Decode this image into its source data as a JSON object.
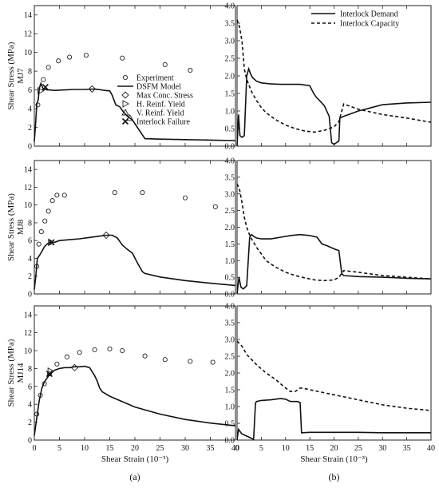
{
  "chart_data": [
    {
      "type": "scatter",
      "column": "a",
      "row_label": "MJ7",
      "ylabel": "Shear Stress (MPa)",
      "xlabel": "",
      "xlim": [
        0,
        40
      ],
      "ylim": [
        0,
        15
      ],
      "xticks": [
        0,
        5,
        10,
        15,
        20,
        25,
        30,
        35,
        40
      ],
      "yticks": [
        0,
        2,
        4,
        6,
        8,
        10,
        12,
        14
      ],
      "legend": {
        "placement": "right",
        "entries": [
          "Experiment",
          "DSFM Model",
          "Max Conc. Stress",
          "H. Reinf. Yield",
          "V. Reinf. Yield",
          "Interlock Failure"
        ]
      },
      "series": [
        {
          "name": "Experiment",
          "kind": "circle",
          "x": [
            0.7,
            1.8,
            2.8,
            4.8,
            7.0,
            10.3,
            17.5,
            26.0,
            31.0
          ],
          "y": [
            4.4,
            7.1,
            8.4,
            9.1,
            9.5,
            9.7,
            9.4,
            8.7,
            8.1
          ]
        },
        {
          "name": "DSFM Model",
          "kind": "line",
          "x": [
            0,
            0.2,
            0.5,
            0.8,
            1.0,
            1.3,
            1.6,
            1.9,
            2.2,
            2.5,
            3.0,
            4.0,
            6.0,
            8.0,
            10.0,
            12.0,
            14.0,
            15.0,
            15.5,
            16.2,
            17.0,
            17.5,
            18.5,
            19.5,
            20.5,
            21.5,
            22.0,
            25.0,
            30.0,
            35.0,
            40.0
          ],
          "y": [
            0.5,
            2.0,
            4.5,
            5.0,
            6.2,
            6.7,
            6.3,
            6.0,
            6.1,
            6.0,
            6.0,
            5.95,
            6.0,
            6.05,
            6.05,
            6.1,
            5.95,
            5.9,
            5.4,
            4.4,
            4.2,
            3.8,
            3.2,
            2.8,
            2.0,
            1.2,
            0.8,
            0.75,
            0.7,
            0.65,
            0.6
          ]
        },
        {
          "name": "Max Conc. Stress",
          "kind": "diamond",
          "x": [
            11.5
          ],
          "y": [
            6.1
          ]
        },
        {
          "name": "H. Reinf. Yield",
          "kind": "triangle-right",
          "x": [
            1.2
          ],
          "y": [
            5.9
          ]
        },
        {
          "name": "V. Reinf. Yield",
          "kind": "triangle-up",
          "x": [
            19.0
          ],
          "y": [
            3.0
          ]
        },
        {
          "name": "Interlock Failure",
          "kind": "cross",
          "x": [
            2.2
          ],
          "y": [
            6.3
          ]
        }
      ]
    },
    {
      "type": "line",
      "column": "b",
      "xlabel": "",
      "xlim": [
        0,
        40
      ],
      "ylim": [
        0,
        4
      ],
      "xticks": [
        0,
        5,
        10,
        15,
        20,
        25,
        30,
        35,
        40
      ],
      "yticks": [
        0.0,
        0.5,
        1.0,
        1.5,
        2.0,
        2.5,
        3.0,
        3.5,
        4.0
      ],
      "legend": {
        "placement": "top-right",
        "entries": [
          "Interlock Demand",
          "Interlock Capacity"
        ]
      },
      "series": [
        {
          "name": "Interlock Demand",
          "kind": "solid",
          "x": [
            0,
            0.3,
            0.6,
            1.0,
            1.5,
            2.0,
            2.4,
            2.8,
            3.2,
            4.0,
            5.0,
            7.0,
            9.0,
            11.0,
            13.0,
            15.0,
            15.8,
            16.3,
            17.0,
            18.0,
            19.0,
            19.5,
            20.0,
            20.5,
            21.0,
            21.2,
            22.0,
            25.0,
            30.0,
            35.0,
            40.0
          ],
          "y": [
            0.0,
            0.9,
            0.3,
            0.25,
            0.3,
            2.0,
            2.2,
            2.05,
            1.95,
            1.85,
            1.8,
            1.77,
            1.76,
            1.76,
            1.76,
            1.72,
            1.5,
            1.4,
            1.3,
            1.15,
            0.85,
            0.1,
            0.05,
            0.1,
            0.15,
            0.8,
            0.85,
            1.0,
            1.18,
            1.23,
            1.25
          ]
        },
        {
          "name": "Interlock Capacity",
          "kind": "dashed",
          "x": [
            0,
            0.5,
            1.0,
            1.5,
            2.0,
            3.0,
            4.0,
            5.0,
            6.0,
            8.0,
            10.0,
            12.0,
            14.0,
            16.0,
            18.0,
            19.0,
            20.0,
            21.0,
            22.0,
            25.0,
            30.0,
            35.0,
            40.0
          ],
          "y": [
            3.6,
            3.4,
            3.0,
            2.2,
            1.9,
            1.55,
            1.3,
            1.1,
            0.95,
            0.75,
            0.6,
            0.5,
            0.43,
            0.4,
            0.45,
            0.5,
            0.55,
            0.7,
            1.2,
            1.05,
            0.9,
            0.8,
            0.68
          ]
        }
      ]
    },
    {
      "type": "scatter",
      "column": "a",
      "row_label": "MJ8",
      "ylabel": "Shear Stress (MPa)",
      "xlabel": "",
      "xlim": [
        0,
        40
      ],
      "ylim": [
        0,
        15
      ],
      "xticks": [
        0,
        5,
        10,
        15,
        20,
        25,
        30,
        35,
        40
      ],
      "yticks": [
        0,
        2,
        4,
        6,
        8,
        10,
        12,
        14
      ],
      "series": [
        {
          "name": "Experiment",
          "kind": "circle",
          "x": [
            0.5,
            0.9,
            1.4,
            2.1,
            2.8,
            3.6,
            4.5,
            6.0,
            16.0,
            21.5,
            30.0,
            36.0
          ],
          "y": [
            3.1,
            5.6,
            7.0,
            8.2,
            9.3,
            10.5,
            11.1,
            11.1,
            11.4,
            11.4,
            10.8,
            9.8
          ]
        },
        {
          "name": "DSFM Model",
          "kind": "line",
          "x": [
            0,
            0.3,
            0.6,
            1.0,
            1.5,
            2.0,
            2.5,
            3.0,
            4.0,
            5.0,
            7.0,
            9.0,
            11.0,
            13.0,
            14.5,
            15.5,
            16.5,
            17.5,
            18.5,
            19.5,
            20.5,
            21.5,
            22.0,
            25.0,
            30.0,
            35.0,
            40.0
          ],
          "y": [
            0.5,
            2.0,
            4.0,
            4.3,
            4.8,
            5.3,
            5.6,
            5.8,
            5.8,
            6.0,
            6.1,
            6.2,
            6.35,
            6.5,
            6.6,
            6.6,
            6.3,
            5.5,
            5.0,
            4.6,
            3.5,
            2.5,
            2.3,
            1.9,
            1.5,
            1.2,
            0.95
          ]
        },
        {
          "name": "Max Conc. Stress",
          "kind": "diamond",
          "x": [
            14.3
          ],
          "y": [
            6.6
          ]
        },
        {
          "name": "H. Reinf. Yield",
          "kind": "triangle-right",
          "x": [
            3.3
          ],
          "y": [
            5.8
          ]
        },
        {
          "name": "Interlock Failure",
          "kind": "cross",
          "x": [
            3.4
          ],
          "y": [
            5.8
          ]
        }
      ]
    },
    {
      "type": "line",
      "column": "b",
      "xlabel": "",
      "xlim": [
        0,
        40
      ],
      "ylim": [
        0,
        4
      ],
      "xticks": [
        0,
        5,
        10,
        15,
        20,
        25,
        30,
        35,
        40
      ],
      "yticks": [
        0.0,
        0.5,
        1.0,
        1.5,
        2.0,
        2.5,
        3.0,
        3.5,
        4.0
      ],
      "series": [
        {
          "name": "Interlock Demand",
          "kind": "solid",
          "x": [
            0,
            0.4,
            0.8,
            1.3,
            2.0,
            2.6,
            3.0,
            3.5,
            4.0,
            5.0,
            7.0,
            9.0,
            11.0,
            13.0,
            15.0,
            16.5,
            17.5,
            18.5,
            20.0,
            21.0,
            21.6,
            22.0,
            25.0,
            30.0,
            35.0,
            40.0
          ],
          "y": [
            0.0,
            0.5,
            0.2,
            0.15,
            0.25,
            1.7,
            1.78,
            1.72,
            1.68,
            1.65,
            1.65,
            1.7,
            1.75,
            1.78,
            1.75,
            1.7,
            1.5,
            1.45,
            1.35,
            1.3,
            0.6,
            0.55,
            0.52,
            0.5,
            0.47,
            0.45
          ]
        },
        {
          "name": "Interlock Capacity",
          "kind": "dashed",
          "x": [
            0,
            0.5,
            1.0,
            1.5,
            2.0,
            2.5,
            3.0,
            4.0,
            5.0,
            6.0,
            8.0,
            10.0,
            12.0,
            14.0,
            16.0,
            18.0,
            20.0,
            21.0,
            22.0,
            25.0,
            30.0,
            35.0,
            40.0
          ],
          "y": [
            3.3,
            3.15,
            2.75,
            2.3,
            2.0,
            1.8,
            1.65,
            1.4,
            1.2,
            1.0,
            0.8,
            0.65,
            0.55,
            0.48,
            0.42,
            0.4,
            0.42,
            0.5,
            0.7,
            0.65,
            0.55,
            0.5,
            0.45
          ]
        }
      ]
    },
    {
      "type": "scatter",
      "column": "a",
      "row_label": "MJ14",
      "ylabel": "Shear Stress (MPa)",
      "xlabel": "Shear Strain (10⁻³)",
      "xlim": [
        0,
        40
      ],
      "ylim": [
        0,
        15
      ],
      "xticks": [
        0,
        5,
        10,
        15,
        20,
        25,
        30,
        35,
        40
      ],
      "yticks": [
        0,
        2,
        4,
        6,
        8,
        10,
        12,
        14
      ],
      "panel_label": "(a)",
      "series": [
        {
          "name": "Experiment",
          "kind": "circle",
          "x": [
            0.5,
            1.2,
            2.0,
            3.0,
            4.5,
            6.5,
            9.0,
            12.0,
            15.0,
            17.5,
            22.0,
            26.0,
            31.0,
            35.5
          ],
          "y": [
            2.9,
            5.0,
            6.3,
            7.4,
            8.5,
            9.3,
            9.8,
            10.1,
            10.2,
            10.0,
            9.4,
            9.0,
            8.8,
            8.7
          ]
        },
        {
          "name": "DSFM Model",
          "kind": "line",
          "x": [
            0,
            0.5,
            1.0,
            1.5,
            2.0,
            3.0,
            4.0,
            5.0,
            6.0,
            7.0,
            8.0,
            9.0,
            10.0,
            11.0,
            12.0,
            12.5,
            13.0,
            13.5,
            15.0,
            20.0,
            25.0,
            30.0,
            35.0,
            40.0
          ],
          "y": [
            0.5,
            2.5,
            4.5,
            5.8,
            6.5,
            7.3,
            7.8,
            8.0,
            8.1,
            8.1,
            8.2,
            8.2,
            8.25,
            8.1,
            7.2,
            6.6,
            5.8,
            5.4,
            4.9,
            3.7,
            2.9,
            2.3,
            1.9,
            1.6
          ]
        },
        {
          "name": "Max Conc. Stress",
          "kind": "diamond",
          "x": [
            8.0
          ],
          "y": [
            8.1
          ]
        },
        {
          "name": "H. Reinf. Yield",
          "kind": "triangle-right",
          "x": [
            3.2
          ],
          "y": [
            7.7
          ]
        },
        {
          "name": "Interlock Failure",
          "kind": "cross",
          "x": [
            3.0
          ],
          "y": [
            7.4
          ]
        }
      ]
    },
    {
      "type": "line",
      "column": "b",
      "xlabel": "Shear Strain (10⁻³)",
      "xlim": [
        0,
        40
      ],
      "ylim": [
        0,
        4
      ],
      "xticks": [
        0,
        5,
        10,
        15,
        20,
        25,
        30,
        35,
        40
      ],
      "yticks": [
        0.0,
        0.5,
        1.0,
        1.5,
        2.0,
        2.5,
        3.0,
        3.5,
        4.0
      ],
      "panel_label": "(b)",
      "series": [
        {
          "name": "Interlock Demand",
          "kind": "solid",
          "x": [
            0,
            0.3,
            1.0,
            2.0,
            3.0,
            3.4,
            3.8,
            4.0,
            5.0,
            7.0,
            9.0,
            10.0,
            11.0,
            12.5,
            13.0,
            13.3,
            13.5,
            15.0,
            20.0,
            25.0,
            30.0,
            35.0,
            40.0
          ],
          "y": [
            0.0,
            0.32,
            0.18,
            0.12,
            0.05,
            0.02,
            1.1,
            1.15,
            1.18,
            1.2,
            1.24,
            1.22,
            1.15,
            1.15,
            1.12,
            0.22,
            0.22,
            0.23,
            0.23,
            0.23,
            0.22,
            0.22,
            0.22
          ]
        },
        {
          "name": "Interlock Capacity",
          "kind": "dashed",
          "x": [
            0,
            1.0,
            2.0,
            4.0,
            6.0,
            8.0,
            10.0,
            11.0,
            12.0,
            13.0,
            13.5,
            15.0,
            20.0,
            25.0,
            30.0,
            35.0,
            40.0
          ],
          "y": [
            2.95,
            2.8,
            2.55,
            2.25,
            2.0,
            1.8,
            1.55,
            1.45,
            1.45,
            1.55,
            1.55,
            1.5,
            1.35,
            1.2,
            1.05,
            0.95,
            0.88
          ]
        }
      ]
    }
  ]
}
